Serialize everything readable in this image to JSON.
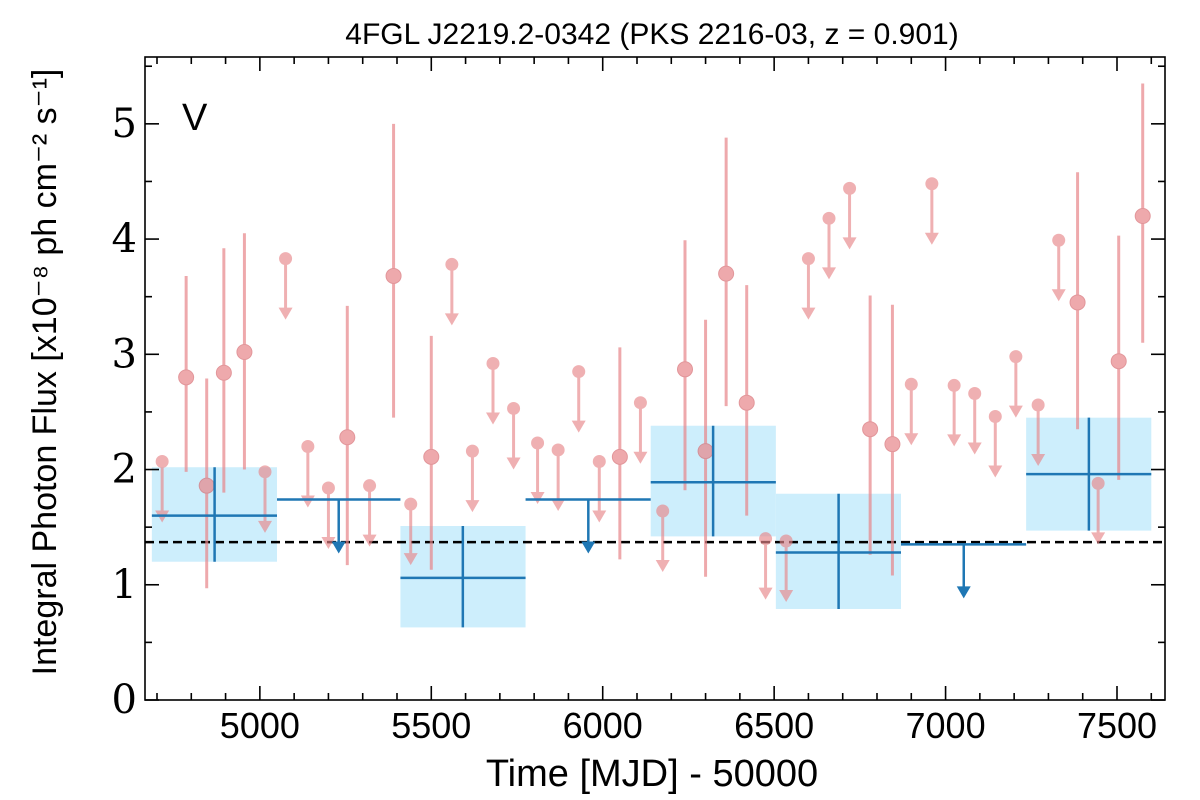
{
  "chart_data": {
    "type": "scatter",
    "title": "4FGL J2219.2-0342 (PKS 2216-03, z = 0.901)",
    "xlabel": "Time [MJD] - 50000",
    "ylabel": "Integral Photon Flux [x10⁻⁸ ph cm⁻² s⁻¹]",
    "annotation": "V",
    "xlim": [
      4665,
      7640
    ],
    "ylim": [
      0,
      5.58
    ],
    "xticks": [
      5000,
      5500,
      6000,
      6500,
      7000,
      7500
    ],
    "yticks": [
      0,
      1,
      2,
      3,
      4,
      5
    ],
    "reference_level": 1.37,
    "colors": {
      "short_bins": "#e8868a",
      "long_bins": "#1f77b4",
      "long_bins_band": "#cdeefc",
      "annotation": "#d62728",
      "reference_line": "#000000"
    },
    "series": [
      {
        "name": "",
        "bin_width_days": 60,
        "detections": [
          {
            "x": 4785,
            "y": 2.8,
            "ylo": 1.98,
            "yhi": 3.68
          },
          {
            "x": 4845,
            "y": 1.86,
            "ylo": 0.97,
            "yhi": 2.79
          },
          {
            "x": 4895,
            "y": 2.84,
            "ylo": 1.8,
            "yhi": 3.92
          },
          {
            "x": 4955,
            "y": 3.02,
            "ylo": 2.0,
            "yhi": 4.05
          },
          {
            "x": 5255,
            "y": 2.28,
            "ylo": 1.17,
            "yhi": 3.42
          },
          {
            "x": 5390,
            "y": 3.68,
            "ylo": 2.45,
            "yhi": 5.0
          },
          {
            "x": 5500,
            "y": 2.11,
            "ylo": 1.13,
            "yhi": 3.16
          },
          {
            "x": 6050,
            "y": 2.11,
            "ylo": 1.22,
            "yhi": 3.06
          },
          {
            "x": 6240,
            "y": 2.87,
            "ylo": 1.82,
            "yhi": 3.99
          },
          {
            "x": 6300,
            "y": 2.16,
            "ylo": 1.07,
            "yhi": 3.3
          },
          {
            "x": 6360,
            "y": 3.7,
            "ylo": 2.55,
            "yhi": 4.88
          },
          {
            "x": 6420,
            "y": 2.58,
            "ylo": 1.6,
            "yhi": 3.6
          },
          {
            "x": 6780,
            "y": 2.35,
            "ylo": 1.26,
            "yhi": 3.51
          },
          {
            "x": 6845,
            "y": 2.22,
            "ylo": 1.08,
            "yhi": 3.43
          },
          {
            "x": 7385,
            "y": 3.45,
            "ylo": 2.35,
            "yhi": 4.58
          },
          {
            "x": 7505,
            "y": 2.94,
            "ylo": 1.91,
            "yhi": 4.03
          },
          {
            "x": 7575,
            "y": 4.2,
            "ylo": 3.1,
            "yhi": 5.35
          }
        ],
        "upper_limits": [
          {
            "x": 4715,
            "y": 2.07
          },
          {
            "x": 5015,
            "y": 1.98
          },
          {
            "x": 5075,
            "y": 3.83
          },
          {
            "x": 5140,
            "y": 2.2
          },
          {
            "x": 5200,
            "y": 1.84
          },
          {
            "x": 5320,
            "y": 1.86
          },
          {
            "x": 5440,
            "y": 1.7
          },
          {
            "x": 5560,
            "y": 3.78
          },
          {
            "x": 5620,
            "y": 2.16
          },
          {
            "x": 5680,
            "y": 2.92
          },
          {
            "x": 5740,
            "y": 2.53
          },
          {
            "x": 5810,
            "y": 2.23
          },
          {
            "x": 5870,
            "y": 2.17
          },
          {
            "x": 5930,
            "y": 2.85
          },
          {
            "x": 5990,
            "y": 2.07
          },
          {
            "x": 6110,
            "y": 2.58
          },
          {
            "x": 6175,
            "y": 1.64
          },
          {
            "x": 6475,
            "y": 1.4
          },
          {
            "x": 6535,
            "y": 1.38
          },
          {
            "x": 6600,
            "y": 3.83
          },
          {
            "x": 6660,
            "y": 4.18
          },
          {
            "x": 6720,
            "y": 4.44
          },
          {
            "x": 6900,
            "y": 2.74
          },
          {
            "x": 6960,
            "y": 4.48
          },
          {
            "x": 7025,
            "y": 2.73
          },
          {
            "x": 7085,
            "y": 2.66
          },
          {
            "x": 7145,
            "y": 2.46
          },
          {
            "x": 7205,
            "y": 2.98
          },
          {
            "x": 7270,
            "y": 2.56
          },
          {
            "x": 7330,
            "y": 3.99
          },
          {
            "x": 7445,
            "y": 1.88
          }
        ]
      },
      {
        "name": "",
        "detections": [
          {
            "x0": 4685,
            "x1": 5050,
            "xc": 4868,
            "y": 1.6,
            "ylo": 1.2,
            "yhi": 2.02
          },
          {
            "x0": 5410,
            "x1": 5775,
            "xc": 5592,
            "y": 1.06,
            "ylo": 0.63,
            "yhi": 1.51
          },
          {
            "x0": 6140,
            "x1": 6505,
            "xc": 6322,
            "y": 1.89,
            "ylo": 1.42,
            "yhi": 2.38
          },
          {
            "x0": 6505,
            "x1": 6870,
            "xc": 6688,
            "y": 1.28,
            "ylo": 0.79,
            "yhi": 1.79
          },
          {
            "x0": 7235,
            "x1": 7600,
            "xc": 7418,
            "y": 1.96,
            "ylo": 1.47,
            "yhi": 2.45
          }
        ],
        "upper_limits": [
          {
            "x0": 5050,
            "x1": 5410,
            "xc": 5230,
            "y": 1.74
          },
          {
            "x0": 5775,
            "x1": 6140,
            "xc": 5958,
            "y": 1.74
          },
          {
            "x0": 6870,
            "x1": 7235,
            "xc": 7053,
            "y": 1.35
          }
        ]
      }
    ]
  }
}
